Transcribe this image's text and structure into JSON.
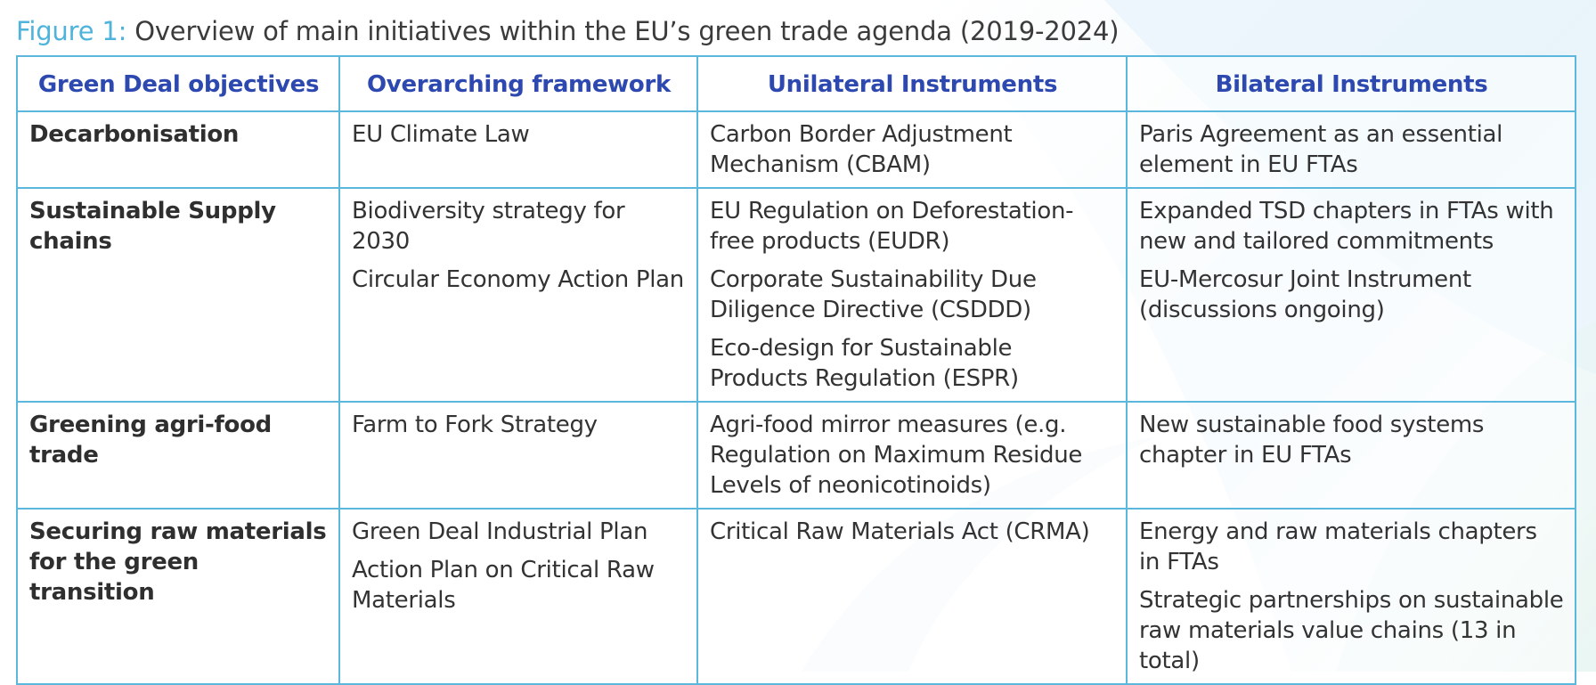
{
  "caption": {
    "label": "Figure 1:",
    "text": "Overview of main initiatives within the EU’s green trade agenda (2019-2024)"
  },
  "table": {
    "headers": [
      "Green Deal objectives",
      "Overarching framework",
      "Unilateral Instruments",
      "Bilateral Instruments"
    ],
    "rows": [
      {
        "objective": "Decarbonisation",
        "framework": [
          "EU Climate Law"
        ],
        "unilateral": [
          "Carbon Border Adjustment Mechanism (CBAM)"
        ],
        "bilateral": [
          "Paris Agreement as an essential element in EU FTAs"
        ]
      },
      {
        "objective": "Sustainable Supply chains",
        "framework": [
          "Biodiversity strategy for 2030",
          "Circular Economy Action Plan"
        ],
        "unilateral": [
          "EU Regulation on Deforestation-free products (EUDR)",
          "Corporate Sustainability Due Diligence Directive (CSDDD)",
          "Eco-design for Sustainable Products Regulation (ESPR)"
        ],
        "bilateral": [
          "Expanded TSD chapters in FTAs with new and tailored commitments",
          "EU-Mercosur Joint Instrument (discussions ongoing)"
        ]
      },
      {
        "objective": "Greening agri-food trade",
        "framework": [
          "Farm to Fork Strategy"
        ],
        "unilateral": [
          "Agri-food mirror measures (e.g. Regulation on Maximum Residue Levels of neonicotinoids)"
        ],
        "bilateral": [
          "New sustainable food systems chapter in EU FTAs"
        ]
      },
      {
        "objective": "Securing raw materials for the green transition",
        "framework": [
          "Green Deal Industrial Plan",
          "Action Plan on Critical Raw Materials"
        ],
        "unilateral": [
          "Critical Raw Materials Act (CRMA)"
        ],
        "bilateral": [
          "Energy and raw materials chapters in FTAs",
          "Strategic partnerships on sustainable raw materials value chains (13 in total)"
        ]
      }
    ]
  },
  "colors": {
    "caption_label": "#4fb3dc",
    "header_text": "#2d49b0",
    "border": "#5bb8dc",
    "body_text": "#333333"
  }
}
